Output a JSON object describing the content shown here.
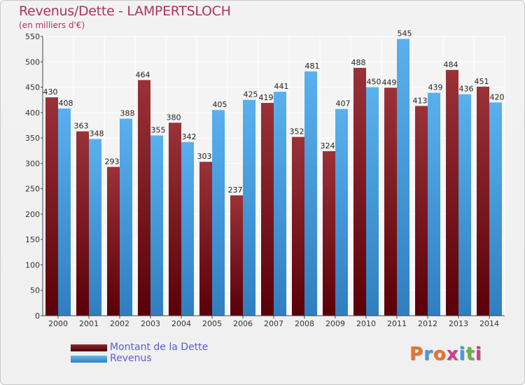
{
  "chart_data": {
    "type": "bar",
    "title": "Revenus/Dette - LAMPERTSLOCH",
    "subtitle": "(en milliers d'€)",
    "categories": [
      "2000",
      "2001",
      "2002",
      "2003",
      "2004",
      "2005",
      "2006",
      "2007",
      "2008",
      "2009",
      "2010",
      "2011",
      "2012",
      "2013",
      "2014"
    ],
    "series": [
      {
        "name": "Montant de la Dette",
        "color": "#7a1e24",
        "values": [
          430,
          363,
          293,
          464,
          380,
          303,
          237,
          419,
          352,
          324,
          488,
          449,
          413,
          484,
          451
        ]
      },
      {
        "name": "Revenus",
        "color": "#3d9de4",
        "values": [
          408,
          348,
          388,
          355,
          342,
          405,
          425,
          441,
          481,
          407,
          450,
          545,
          439,
          436,
          420
        ]
      }
    ],
    "ylim": [
      0,
      550
    ],
    "yticks": [
      0,
      50,
      100,
      150,
      200,
      250,
      300,
      350,
      400,
      450,
      500,
      550
    ],
    "grid": true,
    "legend": "bottom-left"
  },
  "branding": {
    "logo_letters": [
      "P",
      "r",
      "o",
      "x",
      "i",
      "t",
      "i"
    ],
    "logo_colors": [
      "#e8732a",
      "#3d9de4",
      "#e8732a",
      "#d43b8c",
      "#3d9de4",
      "#6ab04c",
      "#d43b8c"
    ]
  }
}
